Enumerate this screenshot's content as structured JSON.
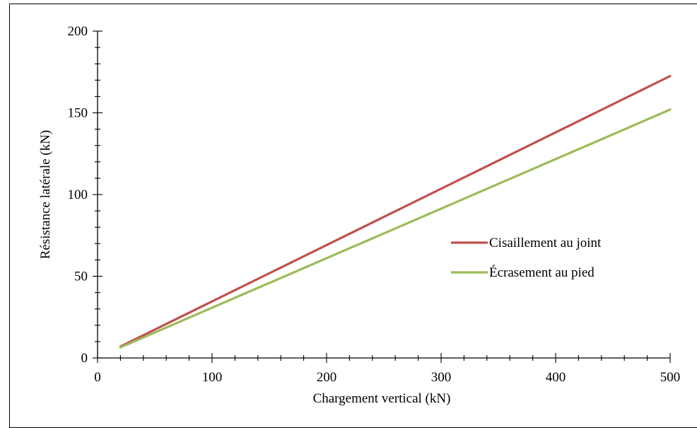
{
  "chart_data": {
    "type": "line",
    "title": "",
    "xlabel": "Chargement vertical (kN)",
    "ylabel": "Résistance latérale (kN)",
    "xlim": [
      0,
      500
    ],
    "ylim": [
      0,
      200
    ],
    "x_major_ticks": [
      0,
      100,
      200,
      300,
      400,
      500
    ],
    "x_minor_step": 20,
    "y_major_ticks": [
      0,
      50,
      100,
      150,
      200
    ],
    "y_minor_step": 10,
    "grid": false,
    "legend_position": "right, inside",
    "series": [
      {
        "name": "Cisaillement au joint",
        "color": "#c0504d",
        "x": [
          20,
          500
        ],
        "y": [
          7,
          172.5
        ]
      },
      {
        "name": "Écrasement au pied",
        "color": "#9bbb59",
        "x": [
          20,
          500
        ],
        "y": [
          6.5,
          152
        ]
      }
    ]
  }
}
